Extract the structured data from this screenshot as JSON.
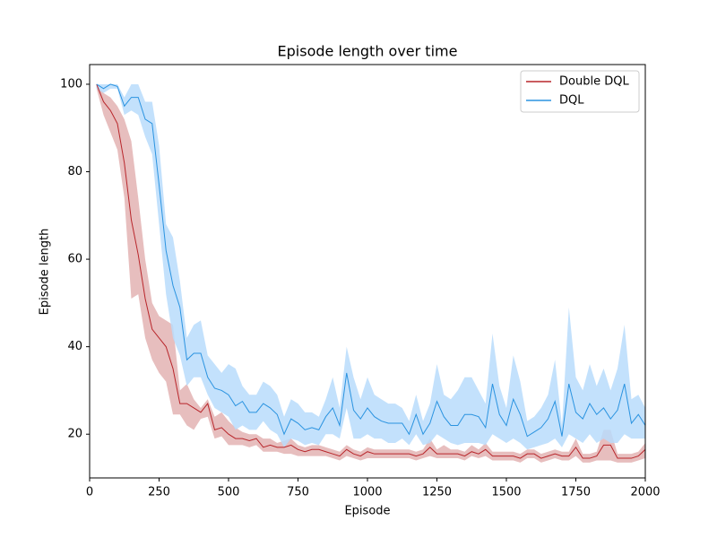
{
  "chart_data": {
    "type": "line",
    "title": "Episode length over time",
    "x_label": "Episode",
    "y_label": "Episode length",
    "x": [
      25,
      50,
      75,
      100,
      125,
      150,
      175,
      200,
      225,
      250,
      275,
      300,
      325,
      350,
      375,
      400,
      425,
      450,
      475,
      500,
      525,
      550,
      575,
      600,
      625,
      650,
      675,
      700,
      725,
      750,
      775,
      800,
      825,
      850,
      875,
      900,
      925,
      950,
      975,
      1000,
      1025,
      1050,
      1075,
      1100,
      1125,
      1150,
      1175,
      1200,
      1225,
      1250,
      1275,
      1300,
      1325,
      1350,
      1375,
      1400,
      1425,
      1450,
      1475,
      1500,
      1525,
      1550,
      1575,
      1600,
      1625,
      1650,
      1675,
      1700,
      1725,
      1750,
      1775,
      1800,
      1825,
      1850,
      1875,
      1900,
      1925,
      1950,
      1975,
      2000
    ],
    "xlim": [
      0,
      2000
    ],
    "xticks": [
      0,
      250,
      500,
      750,
      1000,
      1250,
      1500,
      1750,
      2000
    ],
    "ylim": [
      10,
      104.5
    ],
    "yticks": [
      20,
      40,
      60,
      80,
      100
    ],
    "legend": "upper right",
    "series": [
      {
        "name": "Double DQL",
        "color": "#b8262b",
        "band_color": "#e3b3b3",
        "values": [
          100,
          96,
          94,
          91,
          82,
          69,
          61,
          51,
          44,
          42,
          40,
          35,
          27,
          27,
          26,
          25,
          27,
          21,
          21.5,
          20,
          19,
          19,
          18.5,
          19,
          17,
          17.5,
          17,
          17,
          17.5,
          16.5,
          16,
          16.5,
          16.5,
          16,
          15.5,
          15,
          16.5,
          15.5,
          15,
          16,
          15.5,
          15.5,
          15.5,
          15.5,
          15.5,
          15.5,
          15,
          15.5,
          17,
          15.5,
          15.5,
          15.5,
          15.5,
          15,
          16,
          15.5,
          16.5,
          15,
          15,
          15,
          15,
          14.5,
          15.5,
          15.5,
          14.5,
          15,
          15.5,
          15,
          15,
          17,
          14.5,
          14.5,
          15,
          17.5,
          17.5,
          14.5,
          14.5,
          14.5,
          15,
          16.5
        ],
        "lower": [
          99,
          93,
          89,
          85,
          74,
          51,
          52,
          42,
          37,
          34,
          32,
          24.5,
          24.5,
          22,
          21,
          23.5,
          24,
          19,
          19.5,
          17.5,
          17.5,
          17.5,
          17,
          17.5,
          16,
          16,
          16,
          15.5,
          15.5,
          15,
          15,
          15,
          15,
          15,
          14.5,
          14,
          15,
          14.5,
          14,
          14.5,
          14.5,
          14.5,
          14.5,
          14.5,
          14.5,
          14.5,
          14,
          14.5,
          15,
          14.5,
          14.5,
          14.5,
          14.5,
          14,
          15,
          14.5,
          15,
          14,
          14,
          14,
          14,
          13.5,
          14.5,
          14.5,
          13.5,
          14,
          14.5,
          14,
          14,
          15,
          13.5,
          13.5,
          14,
          14,
          14,
          13.5,
          13.5,
          13.5,
          14,
          14.5
        ],
        "upper": [
          100,
          98,
          97,
          95,
          92,
          87,
          74,
          60,
          50,
          47,
          46,
          45,
          30,
          31.5,
          28,
          26,
          28,
          24,
          25,
          23,
          21.5,
          20.5,
          20,
          20,
          19,
          19,
          18,
          18.5,
          19,
          17.5,
          17,
          17.5,
          17.5,
          17,
          16.5,
          16,
          17.5,
          16.5,
          16,
          17,
          16.5,
          16.5,
          16.5,
          16.5,
          16.5,
          16.5,
          16,
          16.5,
          19,
          16.5,
          17.5,
          16.5,
          16.5,
          16,
          17.5,
          16.5,
          18,
          16,
          16,
          16,
          16,
          15.5,
          16.5,
          16.5,
          15.5,
          16,
          16.5,
          16,
          16,
          19,
          15.5,
          15.5,
          16,
          21,
          21,
          15.5,
          15.5,
          15.5,
          16,
          18
        ]
      },
      {
        "name": "DQL",
        "color": "#2a93e0",
        "band_color": "#b9dcfb",
        "values": [
          100,
          99,
          100,
          99.5,
          95,
          97,
          97,
          92,
          91,
          77,
          62,
          54,
          49,
          37,
          38.5,
          38.5,
          33,
          30.5,
          30,
          29,
          26.5,
          27.5,
          25,
          25,
          27,
          26,
          24.5,
          20,
          23.5,
          22.5,
          21,
          21.5,
          21,
          24,
          26,
          22,
          34,
          25.5,
          23.5,
          26,
          24,
          23,
          22.5,
          22.5,
          22.5,
          20,
          24.5,
          20,
          22.5,
          27.5,
          24,
          22,
          22,
          24.5,
          24.5,
          24,
          21.5,
          31.5,
          24.5,
          22,
          28,
          24.5,
          19.5,
          20.5,
          21.5,
          23.5,
          27.5,
          19.5,
          31.5,
          25,
          23.5,
          27,
          24.5,
          26,
          23.5,
          25.5,
          31.5,
          22.5,
          24.5,
          22
        ],
        "lower": [
          99,
          98,
          99,
          99,
          93,
          94,
          93,
          88,
          84,
          68,
          52,
          42,
          38,
          31,
          33,
          33,
          29,
          26,
          25,
          24,
          21,
          22,
          21,
          21,
          23,
          21,
          20,
          17,
          19,
          18.5,
          17.5,
          18,
          17.5,
          20,
          20,
          19,
          26,
          19,
          19,
          20,
          19,
          19,
          18,
          18,
          19,
          17.5,
          20,
          17.5,
          18,
          20,
          19,
          18,
          17.5,
          18,
          18,
          18,
          17.5,
          20,
          19,
          18,
          19,
          18,
          16.5,
          17,
          17.5,
          18,
          19,
          17,
          20,
          19,
          18,
          20,
          18,
          19,
          18,
          18,
          20,
          19,
          19,
          19
        ],
        "upper": [
          100,
          100,
          100,
          100,
          97,
          100,
          100,
          96,
          96,
          86,
          68,
          65,
          55,
          42,
          45,
          46,
          38,
          36,
          34,
          36,
          35,
          31,
          29,
          29,
          32,
          31,
          29,
          24,
          28,
          27,
          25,
          25,
          24,
          28,
          33,
          26,
          40,
          33,
          28,
          33,
          29,
          28,
          27,
          27,
          26,
          23,
          29,
          23,
          27,
          36,
          29,
          28,
          30,
          33,
          33,
          30,
          27,
          43,
          31,
          26,
          38,
          32,
          23,
          24,
          26,
          29,
          37,
          22,
          49,
          33,
          30,
          36,
          31,
          35,
          30,
          35,
          45,
          28,
          29,
          26
        ]
      }
    ]
  }
}
